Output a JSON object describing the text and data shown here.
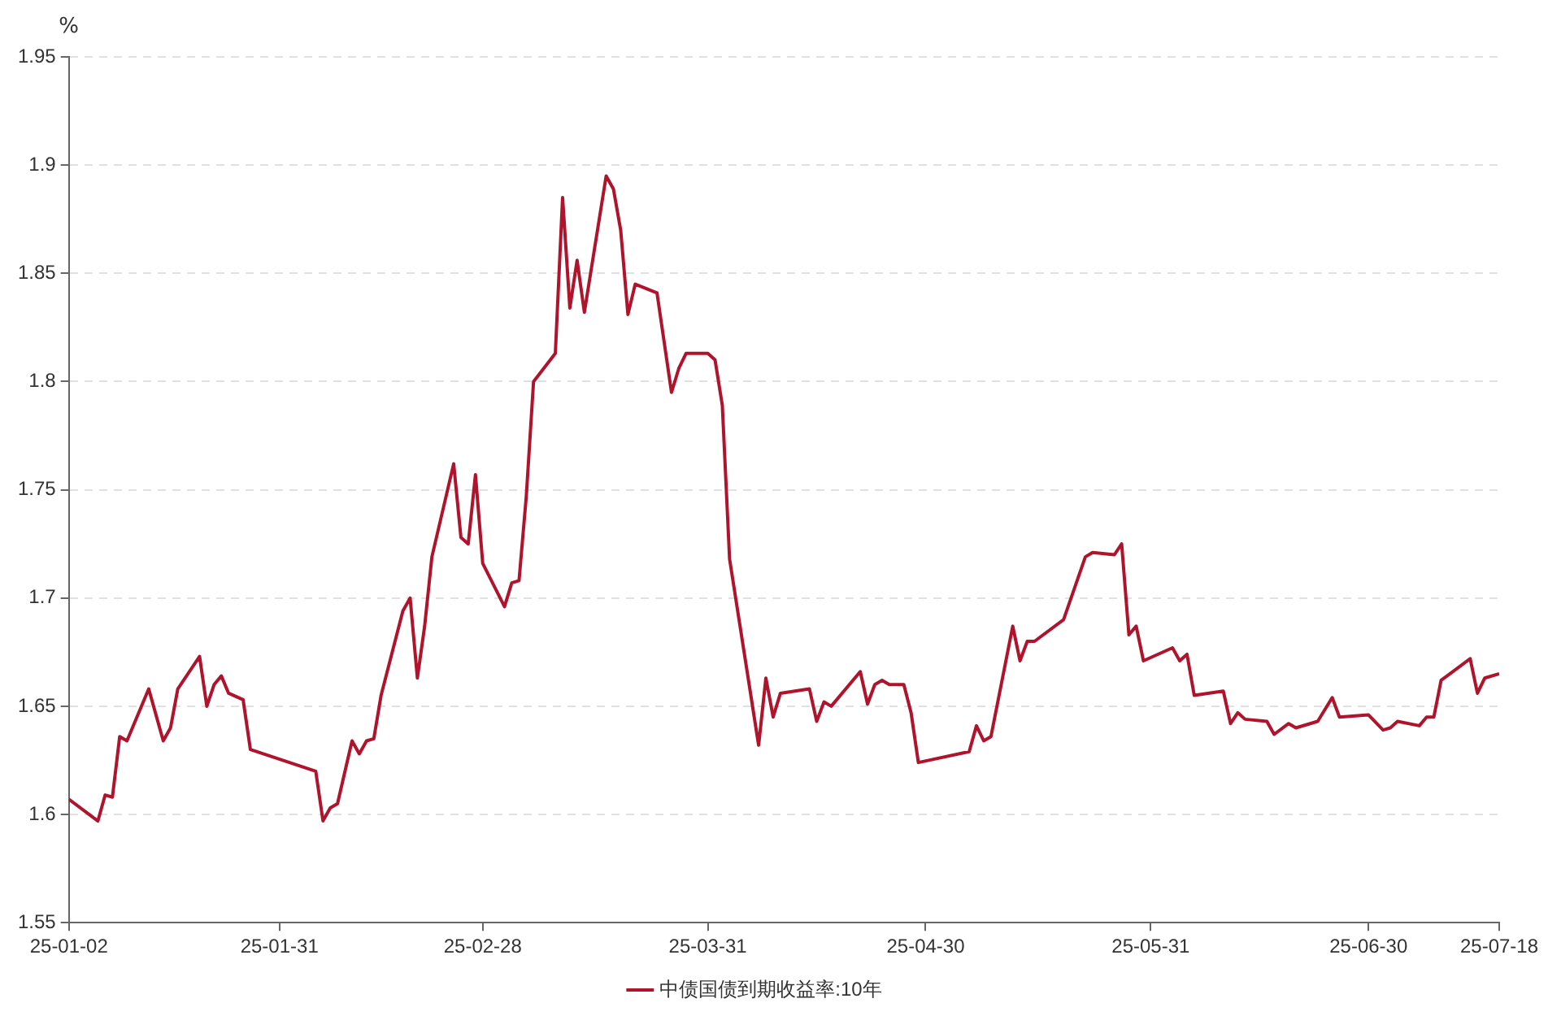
{
  "chart_data": {
    "type": "line",
    "ylabel": "%",
    "legend": "bottom",
    "grid": "y",
    "marker": "none",
    "line_style": "solid",
    "xlim": [
      "--01-02",
      "--07-18"
    ],
    "xticks": [
      {
        "value": "--01-02",
        "label": "25-01-02"
      },
      {
        "value": "--01-31",
        "label": "25-01-31"
      },
      {
        "value": "--02-28",
        "label": "25-02-28"
      },
      {
        "value": "--03-31",
        "label": "25-03-31"
      },
      {
        "value": "--04-30",
        "label": "25-04-30"
      },
      {
        "value": "--05-31",
        "label": "25-05-31"
      },
      {
        "value": "--06-30",
        "label": "25-06-30"
      },
      {
        "value": "--07-18",
        "label": "25-07-18"
      }
    ],
    "ylim": [
      1.55,
      1.95
    ],
    "yticks": [
      1.55,
      1.6,
      1.65,
      1.7,
      1.75,
      1.8,
      1.85,
      1.9,
      1.95
    ],
    "x": [
      "--01-02",
      "--01-06",
      "--01-07",
      "--01-08",
      "--01-09",
      "--01-10",
      "--01-13",
      "--01-15",
      "--01-16",
      "--01-17",
      "--01-20",
      "--01-21",
      "--01-22",
      "--01-23",
      "--01-24",
      "--01-26",
      "--01-27",
      "--02-05",
      "--02-06",
      "--02-07",
      "--02-08",
      "--02-10",
      "--02-11",
      "--02-12",
      "--02-13",
      "--02-14",
      "--02-17",
      "--02-18",
      "--02-19",
      "--02-20",
      "--02-21",
      "--02-24",
      "--02-25",
      "--02-26",
      "--02-27",
      "--02-28",
      "--03-03",
      "--03-04",
      "--03-05",
      "--03-06",
      "--03-07",
      "--03-10",
      "--03-11",
      "--03-12",
      "--03-13",
      "--03-14",
      "--03-17",
      "--03-18",
      "--03-19",
      "--03-20",
      "--03-21",
      "--03-24",
      "--03-26",
      "--03-27",
      "--03-28",
      "--03-31",
      "--04-01",
      "--04-02",
      "--04-03",
      "--04-07",
      "--04-08",
      "--04-09",
      "--04-10",
      "--04-14",
      "--04-15",
      "--04-16",
      "--04-17",
      "--04-21",
      "--04-22",
      "--04-23",
      "--04-24",
      "--04-25",
      "--04-27",
      "--04-28",
      "--04-29",
      "--05-06",
      "--05-07",
      "--05-08",
      "--05-09",
      "--05-12",
      "--05-13",
      "--05-14",
      "--05-15",
      "--05-19",
      "--05-22",
      "--05-23",
      "--05-26",
      "--05-27",
      "--05-28",
      "--05-29",
      "--05-30",
      "--06-03",
      "--06-04",
      "--06-05",
      "--06-06",
      "--06-10",
      "--06-11",
      "--06-12",
      "--06-13",
      "--06-16",
      "--06-17",
      "--06-19",
      "--06-20",
      "--06-23",
      "--06-25",
      "--06-26",
      "--06-30",
      "--07-02",
      "--07-03",
      "--07-04",
      "--07-07",
      "--07-08",
      "--07-09",
      "--07-10",
      "--07-14",
      "--07-15",
      "--07-16",
      "--07-18"
    ],
    "series": [
      {
        "name": "中债国债到期收益率:10年",
        "color": "#b0142c",
        "values": [
          1.607,
          1.597,
          1.609,
          1.608,
          1.636,
          1.634,
          1.658,
          1.634,
          1.64,
          1.658,
          1.673,
          1.65,
          1.66,
          1.664,
          1.656,
          1.653,
          1.63,
          1.62,
          1.597,
          1.603,
          1.605,
          1.634,
          1.628,
          1.634,
          1.635,
          1.655,
          1.694,
          1.7,
          1.663,
          1.687,
          1.719,
          1.762,
          1.728,
          1.725,
          1.757,
          1.716,
          1.696,
          1.707,
          1.708,
          1.747,
          1.8,
          1.813,
          1.885,
          1.834,
          1.856,
          1.832,
          1.895,
          1.889,
          1.87,
          1.831,
          1.845,
          1.841,
          1.795,
          1.806,
          1.813,
          1.813,
          1.81,
          1.789,
          1.718,
          1.632,
          1.663,
          1.645,
          1.656,
          1.658,
          1.643,
          1.652,
          1.65,
          1.666,
          1.651,
          1.66,
          1.662,
          1.66,
          1.66,
          1.647,
          1.624,
          1.629,
          1.641,
          1.634,
          1.636,
          1.687,
          1.671,
          1.68,
          1.68,
          1.69,
          1.719,
          1.721,
          1.72,
          1.725,
          1.683,
          1.687,
          1.671,
          1.677,
          1.671,
          1.674,
          1.655,
          1.657,
          1.642,
          1.647,
          1.644,
          1.643,
          1.637,
          1.642,
          1.64,
          1.643,
          1.654,
          1.645,
          1.646,
          1.639,
          1.64,
          1.643,
          1.641,
          1.645,
          1.645,
          1.662,
          1.672,
          1.656,
          1.663,
          1.665
        ]
      }
    ]
  }
}
